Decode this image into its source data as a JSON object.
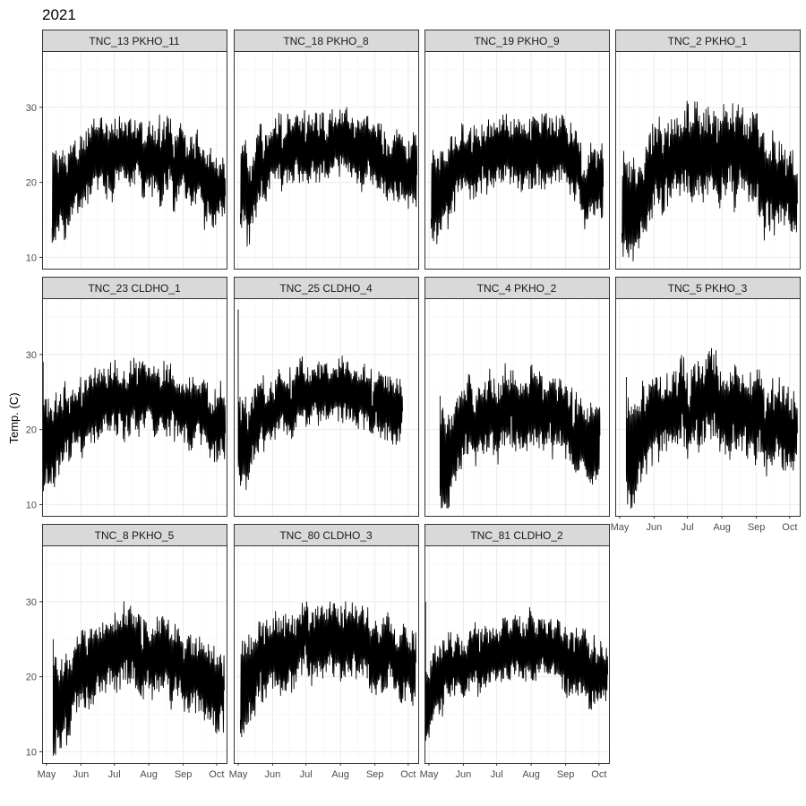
{
  "chart_data": {
    "type": "line",
    "title": "2021",
    "ylabel": "Temp. (C)",
    "xlabel": "",
    "x_range": [
      "2021-04-27",
      "2021-10-10"
    ],
    "ylim": [
      8.5,
      37.5
    ],
    "y_ticks": [
      10,
      20,
      30
    ],
    "x_ticks": [
      {
        "date": "2021-05-01",
        "label": "May"
      },
      {
        "date": "2021-06-01",
        "label": "Jun"
      },
      {
        "date": "2021-07-01",
        "label": "Jul"
      },
      {
        "date": "2021-08-01",
        "label": "Aug"
      },
      {
        "date": "2021-09-01",
        "label": "Sep"
      },
      {
        "date": "2021-10-01",
        "label": "Oct"
      }
    ],
    "grid": true,
    "line_color": "#000000",
    "strip_fill": "#d9d9d9",
    "facets": [
      {
        "name": "TNC_13 PKHO_11",
        "start": "2021-05-06",
        "end": "2021-10-08",
        "tmin": 12.0,
        "tmax": 29.0,
        "spike": null
      },
      {
        "name": "TNC_18 PKHO_8",
        "start": "2021-05-03",
        "end": "2021-10-08",
        "tmin": 11.5,
        "tmax": 30.0,
        "spike": null
      },
      {
        "name": "TNC_19 PKHO_9",
        "start": "2021-05-03",
        "end": "2021-10-04",
        "tmin": 11.8,
        "tmax": 29.2,
        "spike": null
      },
      {
        "name": "TNC_2 PKHO_1",
        "start": "2021-05-03",
        "end": "2021-10-07",
        "tmin": 9.5,
        "tmax": 30.8,
        "spike": null
      },
      {
        "name": "TNC_23 CLDHO_1",
        "start": "2021-04-28",
        "end": "2021-10-08",
        "tmin": 11.8,
        "tmax": 29.5,
        "spike": 29.0
      },
      {
        "name": "TNC_25 CLDHO_4",
        "start": "2021-05-01",
        "end": "2021-09-25",
        "tmin": 12.0,
        "tmax": 29.8,
        "spike": 36.0
      },
      {
        "name": "TNC_4 PKHO_2",
        "start": "2021-05-11",
        "end": "2021-10-01",
        "tmin": 9.5,
        "tmax": 28.8,
        "spike": 24.5
      },
      {
        "name": "TNC_5 PKHO_3",
        "start": "2021-05-07",
        "end": "2021-10-07",
        "tmin": 9.5,
        "tmax": 30.8,
        "spike": 27.0
      },
      {
        "name": "TNC_8 PKHO_5",
        "start": "2021-05-07",
        "end": "2021-10-07",
        "tmin": 9.5,
        "tmax": 30.0,
        "spike": 25.0
      },
      {
        "name": "TNC_80 CLDHO_3",
        "start": "2021-05-03",
        "end": "2021-10-07",
        "tmin": 12.0,
        "tmax": 30.0,
        "spike": null
      },
      {
        "name": "TNC_81 CLDHO_2",
        "start": "2021-04-28",
        "end": "2021-10-08",
        "tmin": 11.5,
        "tmax": 29.2,
        "spike": 30.0
      }
    ]
  }
}
